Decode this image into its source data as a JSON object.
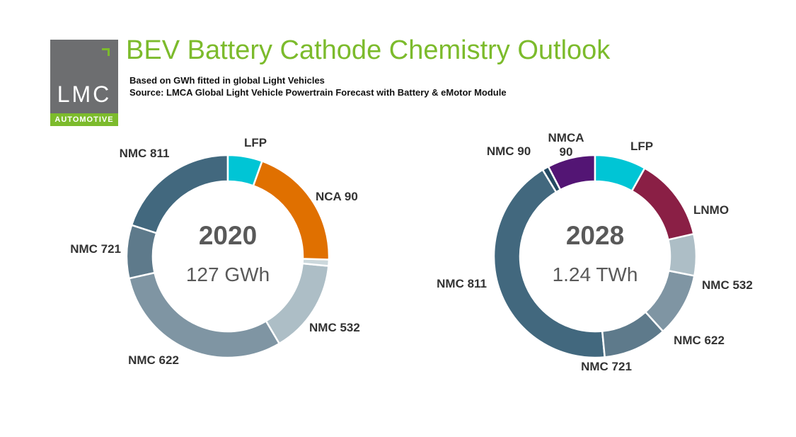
{
  "header": {
    "title": "BEV Battery Cathode Chemistry Outlook",
    "subtitle_1": "Based on GWh fitted in global Light Vehicles",
    "subtitle_2": "Source: LMCA Global Light Vehicle Powertrain Forecast with Battery & eMotor Module"
  },
  "logo": {
    "main": "LMC",
    "sub": "AUTOMOTIVE",
    "brand_color": "#7cbb2c",
    "block_color": "#6d6e70"
  },
  "colors": {
    "LFP": "#00c5d5",
    "NCA 90": "#e07000",
    "NCA other": "#ccd8dc",
    "NMC 532": "#adbec6",
    "NMC 622": "#7f95a3",
    "NMC 721": "#5e7a8b",
    "NMC 811": "#42687e",
    "NMC 90": "#254b63",
    "NMCA 90": "#531574",
    "LNMO": "#8a1f45"
  },
  "chart_data": [
    {
      "type": "pie",
      "year": "2020",
      "total": "127 GWh",
      "slices": [
        {
          "label": "LFP",
          "value": 5.5
        },
        {
          "label": "NCA 90",
          "value": 20
        },
        {
          "label": "",
          "value": 1
        },
        {
          "label": "NMC 532",
          "value": 15
        },
        {
          "label": "NMC 622",
          "value": 30
        },
        {
          "label": "NMC 721",
          "value": 8.5
        },
        {
          "label": "NMC 811",
          "value": 20
        }
      ]
    },
    {
      "type": "pie",
      "year": "2028",
      "total": "1.24 TWh",
      "slices": [
        {
          "label": "LFP",
          "value": 8
        },
        {
          "label": "LNMO",
          "value": 13
        },
        {
          "label": "NMC 532",
          "value": 6.5
        },
        {
          "label": "NMC 622",
          "value": 10
        },
        {
          "label": "NMC 721",
          "value": 10
        },
        {
          "label": "NMC 811",
          "value": 42
        },
        {
          "label": "NMC 90",
          "value": 1
        },
        {
          "label": "NMCA 90",
          "value": 7.5
        }
      ]
    }
  ]
}
